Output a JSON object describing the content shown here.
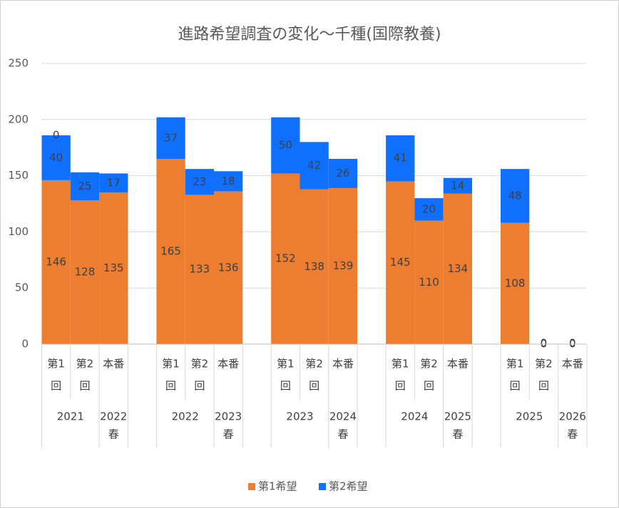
{
  "chart_data": {
    "type": "bar",
    "stacked": true,
    "title": "進路希望調査の変化～千種(国際教養)",
    "ylim": [
      0,
      250
    ],
    "yticks": [
      0,
      50,
      100,
      150,
      200,
      250
    ],
    "grid": true,
    "legend_position": "bottom",
    "groups": [
      {
        "label": "2021",
        "categories": [
          "第1回",
          "第2回"
        ]
      },
      {
        "label": "2022春",
        "categories": [
          "本番"
        ]
      },
      {
        "label": "2022",
        "categories": [
          "第1回",
          "第2回"
        ]
      },
      {
        "label": "2023春",
        "categories": [
          "本番"
        ]
      },
      {
        "label": "2023",
        "categories": [
          "第1回",
          "第2回"
        ]
      },
      {
        "label": "2024春",
        "categories": [
          "本番"
        ]
      },
      {
        "label": "2024",
        "categories": [
          "第1回",
          "第2回"
        ]
      },
      {
        "label": "2025春",
        "categories": [
          "本番"
        ]
      },
      {
        "label": "2025",
        "categories": [
          "第1回",
          "第2回"
        ]
      },
      {
        "label": "2026春",
        "categories": [
          "本番"
        ]
      }
    ],
    "series": [
      {
        "name": "第1希望",
        "color": "#ED7D31",
        "values": [
          146,
          128,
          135,
          165,
          133,
          136,
          152,
          138,
          139,
          145,
          110,
          134,
          108,
          0,
          0
        ]
      },
      {
        "name": "第2希望",
        "color": "#0F6FFF",
        "values": [
          40,
          25,
          17,
          37,
          23,
          18,
          50,
          42,
          26,
          41,
          20,
          14,
          48,
          0,
          0
        ]
      }
    ],
    "extra_labels": [
      {
        "bar": 0,
        "text": "0"
      }
    ]
  }
}
